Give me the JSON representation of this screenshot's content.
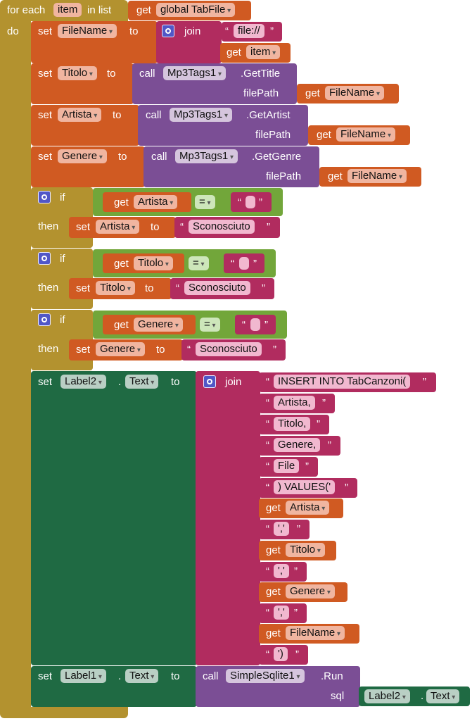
{
  "foreach": {
    "label": "for each",
    "var": "item",
    "in_list": "in list",
    "get": "get",
    "list_var": "global TabFile",
    "do": "do"
  },
  "kw": {
    "set": "set",
    "to": "to",
    "get": "get",
    "call": "call",
    "join": "join",
    "if": "if",
    "then": "then",
    "filepath": "filePath",
    "dot": ".",
    "sql": "sql",
    "lq": "“",
    "rq": "”"
  },
  "set_filename": {
    "var": "FileName",
    "str": "file://",
    "arg_var": "item"
  },
  "set_titolo": {
    "var": "Titolo",
    "component": "Mp3Tags1",
    "method": ".GetTitle",
    "arg_var": "FileName"
  },
  "set_artista": {
    "var": "Artista",
    "component": "Mp3Tags1",
    "method": ".GetArtist",
    "arg_var": "FileName"
  },
  "set_genere": {
    "var": "Genere",
    "component": "Mp3Tags1",
    "method": ".GetGenre",
    "arg_var": "FileName"
  },
  "if_artista": {
    "get_var": "Artista",
    "op": "=",
    "set_var": "Artista",
    "value": "Sconosciuto"
  },
  "if_titolo": {
    "get_var": "Titolo",
    "op": "=",
    "set_var": "Titolo",
    "value": "Sconosciuto"
  },
  "if_genere": {
    "get_var": "Genere",
    "op": "=",
    "set_var": "Genere",
    "value": "Sconosciuto"
  },
  "set_label2": {
    "component": "Label2",
    "prop": "Text",
    "items": [
      "INSERT INTO TabCanzoni(",
      "Artista, ",
      "Titolo, ",
      "Genere, ",
      "File ",
      ") VALUES('",
      "Artista",
      "','",
      "Titolo",
      "','",
      "Genere",
      "','",
      "FileName",
      "')"
    ]
  },
  "set_label1": {
    "component": "Label1",
    "prop": "Text",
    "call_component": "SimpleSqlite1",
    "method": ".Run",
    "arg_component": "Label2",
    "arg_prop": "Text"
  },
  "colors": {
    "control": "#b3922f",
    "variable": "#d05a22",
    "text": "#b12c5f",
    "procedure": "#7b4e95",
    "logic": "#72a63a",
    "component": "#1f6a43"
  }
}
